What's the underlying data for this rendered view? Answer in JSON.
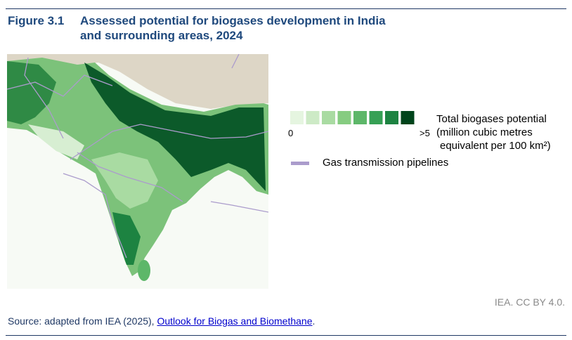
{
  "header": {
    "label": "Figure 3.1",
    "title_lines": [
      "Assessed potential for biogases development in India",
      "and surrounding areas, 2024"
    ]
  },
  "legend": {
    "scale": {
      "colors": [
        "#e5f5e0",
        "#cdeac6",
        "#a9dba2",
        "#86cc81",
        "#5db769",
        "#36a055",
        "#1d8341",
        "#00441b"
      ],
      "min_label": "0",
      "max_label": ">5"
    },
    "title_lines": [
      "Total biogases potential",
      "(million cubic metres",
      "equivalent per 100 km²)"
    ]
  },
  "pipelines": {
    "label": "Gas transmission pipelines",
    "color": "#ab9ccc"
  },
  "credit": "IEA. CC BY 4.0.",
  "source": {
    "prefix": "Source: adapted from IEA (2025), ",
    "link": "Outlook for Biogas and Biomethane",
    "suffix": "."
  }
}
